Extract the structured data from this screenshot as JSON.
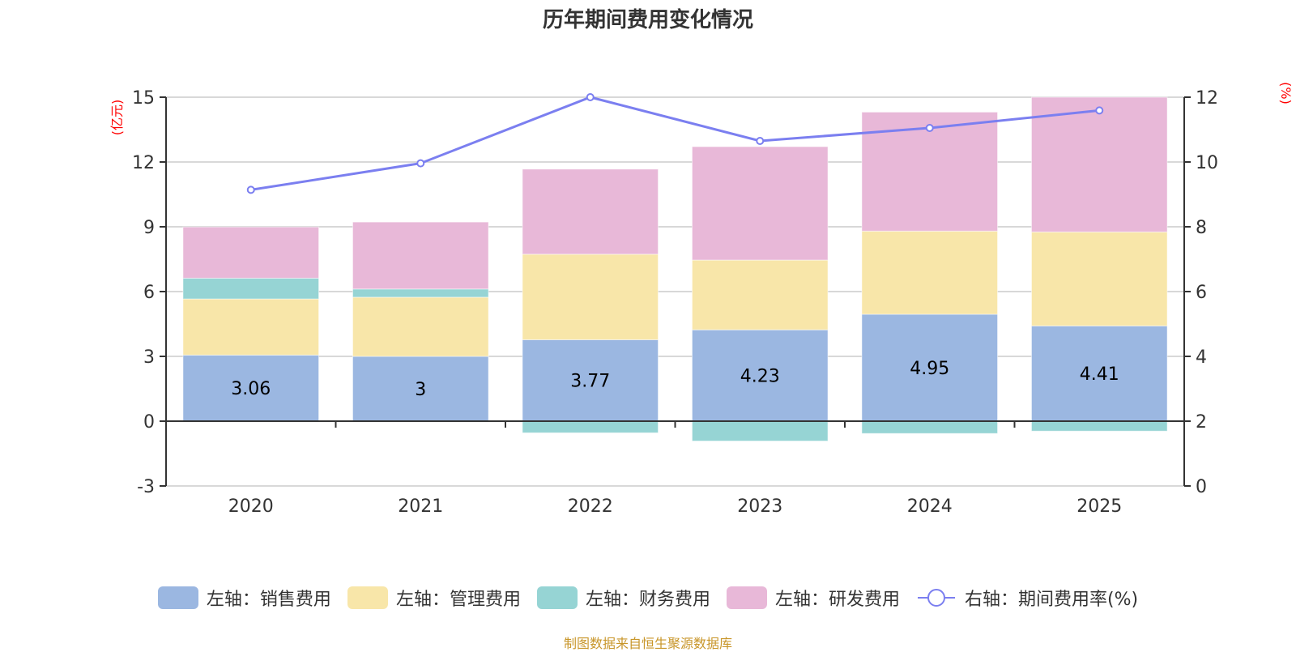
{
  "title": "历年期间费用变化情况",
  "footer": "制图数据来自恒生聚源数据库",
  "chart_data": {
    "type": "bar",
    "stacked": true,
    "title": "历年期间费用变化情况",
    "categories": [
      "2020",
      "2021",
      "2022",
      "2023",
      "2024",
      "2025"
    ],
    "left_axis": {
      "unit_label": "(亿元)",
      "ylim": [
        -3,
        15
      ],
      "ticks": [
        -3,
        0,
        3,
        6,
        9,
        12,
        15
      ]
    },
    "right_axis": {
      "unit_label": "(%)",
      "ylim": [
        0,
        12
      ],
      "ticks": [
        0,
        2,
        4,
        6,
        8,
        10,
        12
      ]
    },
    "grid": true,
    "legend_position": "bottom",
    "series": [
      {
        "name": "左轴：销售费用",
        "type": "bar",
        "axis": "left",
        "color": "#9bb7e1",
        "values": [
          3.06,
          3.0,
          3.77,
          4.23,
          4.95,
          4.41
        ],
        "show_labels": true,
        "labels": [
          "3.06",
          "3",
          "3.77",
          "4.23",
          "4.95",
          "4.41"
        ]
      },
      {
        "name": "左轴：管理费用",
        "type": "bar",
        "axis": "left",
        "color": "#f8e6a9",
        "values": [
          2.6,
          2.74,
          3.96,
          3.23,
          3.85,
          4.35
        ]
      },
      {
        "name": "左轴：财务费用",
        "type": "bar",
        "axis": "left",
        "color": "#96d4d4",
        "values": [
          0.96,
          0.38,
          -0.54,
          -0.92,
          -0.57,
          -0.46
        ]
      },
      {
        "name": "左轴：研发费用",
        "type": "bar",
        "axis": "left",
        "color": "#e8b8d8",
        "values": [
          2.37,
          3.1,
          3.94,
          5.25,
          5.51,
          6.24
        ]
      },
      {
        "name": "右轴：期间费用率(%)",
        "type": "line",
        "axis": "right",
        "color": "#7b7ff0",
        "values": [
          9.14,
          9.96,
          12.0,
          10.65,
          11.05,
          11.59
        ]
      }
    ]
  }
}
